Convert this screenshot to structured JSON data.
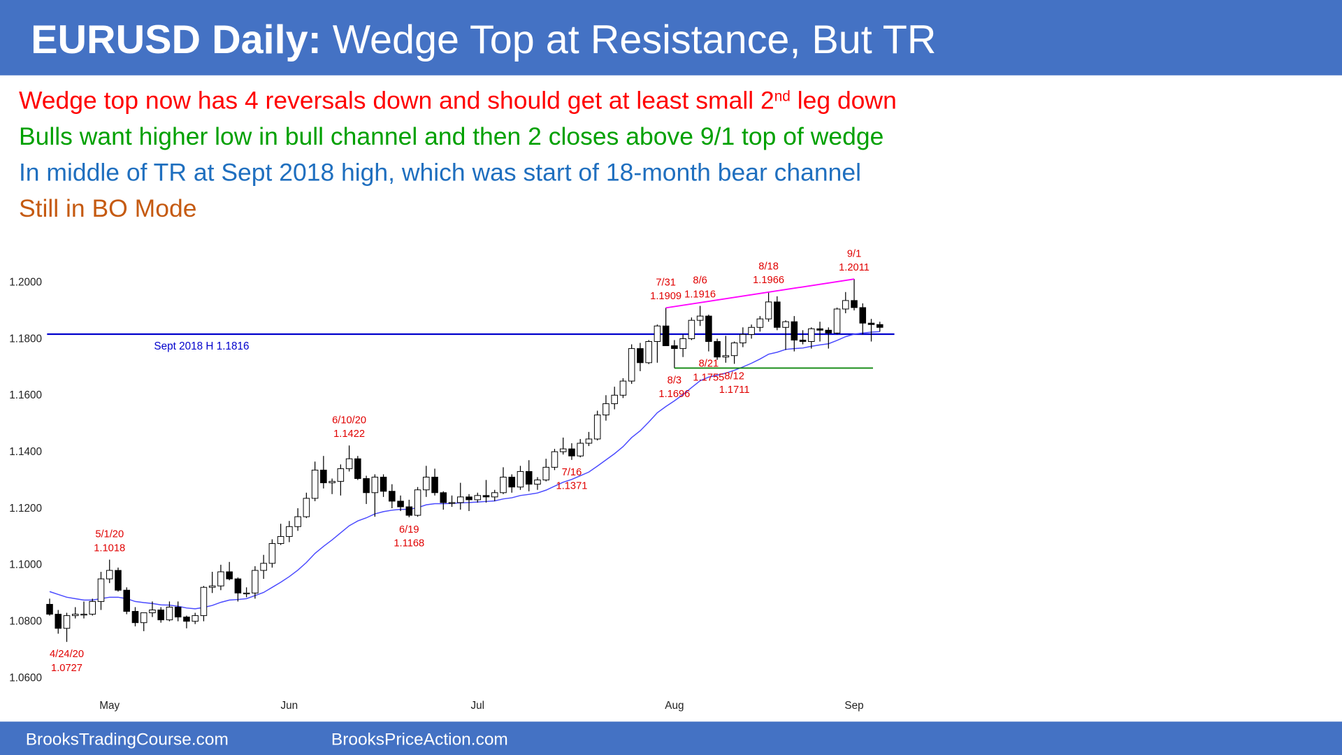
{
  "header": {
    "title_bold": "EURUSD Daily:",
    "title_rest": " Wedge Top at Resistance, But TR"
  },
  "notes": [
    {
      "text": "Wedge top now has 4 reversals down and should get at least small 2",
      "superscript": "nd",
      "text_after": " leg down",
      "color": "#ff0000"
    },
    {
      "text": "Bulls want higher low in bull channel and then 2 closes above 9/1 top of wedge",
      "color": "#00a000"
    },
    {
      "text": "In middle of TR at Sept 2018 high, which was start of 18-month bear channel",
      "color": "#1f6fbf"
    },
    {
      "text": "Still in BO Mode",
      "color": "#c55a11"
    }
  ],
  "chart_data": {
    "type": "candlestick",
    "ylim": [
      1.056,
      1.212
    ],
    "yticks": [
      {
        "value": 1.06,
        "label": "1.0600"
      },
      {
        "value": 1.08,
        "label": "1.0800"
      },
      {
        "value": 1.1,
        "label": "1.1000"
      },
      {
        "value": 1.12,
        "label": "1.1200"
      },
      {
        "value": 1.14,
        "label": "1.1400"
      },
      {
        "value": 1.16,
        "label": "1.1600"
      },
      {
        "value": 1.18,
        "label": "1.1800"
      },
      {
        "value": 1.2,
        "label": "1.2000"
      }
    ],
    "grid": false,
    "categories": [
      null,
      null,
      null,
      null,
      null,
      null,
      null,
      "May",
      null,
      null,
      null,
      null,
      null,
      null,
      null,
      null,
      null,
      null,
      null,
      null,
      null,
      null,
      null,
      null,
      null,
      null,
      null,
      null,
      "Jun",
      null,
      null,
      null,
      null,
      null,
      null,
      null,
      null,
      null,
      null,
      null,
      null,
      null,
      null,
      null,
      null,
      null,
      null,
      null,
      null,
      null,
      "Jul",
      null,
      null,
      null,
      null,
      null,
      null,
      null,
      null,
      null,
      null,
      null,
      null,
      null,
      null,
      null,
      null,
      null,
      null,
      null,
      null,
      null,
      null,
      "Aug",
      null,
      null,
      null,
      null,
      null,
      null,
      null,
      null,
      null,
      null,
      null,
      null,
      null,
      null,
      null,
      null,
      null,
      null,
      null,
      null,
      "Sep",
      null,
      null,
      null
    ],
    "ohlc": [
      [
        1.086,
        1.088,
        1.082,
        1.0825
      ],
      [
        1.0825,
        1.084,
        1.0756,
        1.0775
      ],
      [
        1.0775,
        1.083,
        1.0727,
        1.082
      ],
      [
        1.082,
        1.085,
        1.081,
        1.0825
      ],
      [
        1.0825,
        1.087,
        1.081,
        1.0825
      ],
      [
        1.0825,
        1.088,
        1.082,
        1.087
      ],
      [
        1.087,
        1.0975,
        1.084,
        1.095
      ],
      [
        1.095,
        1.1018,
        1.0935,
        1.098
      ],
      [
        1.098,
        1.099,
        1.0905,
        1.091
      ],
      [
        1.091,
        1.092,
        1.0825,
        1.0835
      ],
      [
        1.0835,
        1.085,
        1.0782,
        1.0795
      ],
      [
        1.0795,
        1.083,
        1.0765,
        1.083
      ],
      [
        1.083,
        1.087,
        1.0815,
        1.084
      ],
      [
        1.084,
        1.085,
        1.0795,
        1.0805
      ],
      [
        1.0805,
        1.087,
        1.08,
        1.085
      ],
      [
        1.085,
        1.087,
        1.08,
        1.0815
      ],
      [
        1.0815,
        1.082,
        1.0775,
        1.08
      ],
      [
        1.08,
        1.083,
        1.079,
        1.082
      ],
      [
        1.082,
        1.0925,
        1.08,
        1.092
      ],
      [
        1.092,
        1.0975,
        1.09,
        1.0925
      ],
      [
        1.0925,
        1.1,
        1.091,
        1.0975
      ],
      [
        1.0975,
        1.101,
        1.0945,
        1.095
      ],
      [
        1.095,
        1.0955,
        1.087,
        1.09
      ],
      [
        1.09,
        1.092,
        1.0885,
        1.09
      ],
      [
        1.09,
        1.0995,
        1.088,
        1.098
      ],
      [
        1.098,
        1.1035,
        1.095,
        1.1005
      ],
      [
        1.1005,
        1.109,
        1.099,
        1.1075
      ],
      [
        1.1075,
        1.1145,
        1.107,
        1.11
      ],
      [
        1.11,
        1.1155,
        1.108,
        1.1135
      ],
      [
        1.1135,
        1.12,
        1.112,
        1.117
      ],
      [
        1.117,
        1.1255,
        1.1165,
        1.1235
      ],
      [
        1.1235,
        1.1365,
        1.1225,
        1.1335
      ],
      [
        1.1335,
        1.1385,
        1.127,
        1.129
      ],
      [
        1.129,
        1.1305,
        1.125,
        1.1295
      ],
      [
        1.1295,
        1.1355,
        1.1245,
        1.134
      ],
      [
        1.134,
        1.1422,
        1.133,
        1.1375
      ],
      [
        1.1375,
        1.1385,
        1.13,
        1.1305
      ],
      [
        1.1305,
        1.1315,
        1.1215,
        1.1255
      ],
      [
        1.1255,
        1.132,
        1.117,
        1.131
      ],
      [
        1.131,
        1.132,
        1.124,
        1.126
      ],
      [
        1.126,
        1.1285,
        1.12,
        1.1225
      ],
      [
        1.1225,
        1.1245,
        1.119,
        1.1205
      ],
      [
        1.1205,
        1.123,
        1.1168,
        1.1175
      ],
      [
        1.1175,
        1.1275,
        1.117,
        1.1265
      ],
      [
        1.1265,
        1.135,
        1.124,
        1.131
      ],
      [
        1.131,
        1.134,
        1.1245,
        1.1255
      ],
      [
        1.1255,
        1.126,
        1.1195,
        1.122
      ],
      [
        1.122,
        1.1245,
        1.1205,
        1.122
      ],
      [
        1.122,
        1.129,
        1.1195,
        1.124
      ],
      [
        1.124,
        1.125,
        1.119,
        1.123
      ],
      [
        1.123,
        1.1255,
        1.122,
        1.1245
      ],
      [
        1.1245,
        1.13,
        1.122,
        1.124
      ],
      [
        1.124,
        1.1265,
        1.1225,
        1.1255
      ],
      [
        1.1255,
        1.1345,
        1.125,
        1.131
      ],
      [
        1.131,
        1.132,
        1.1255,
        1.1275
      ],
      [
        1.1275,
        1.135,
        1.1265,
        1.133
      ],
      [
        1.133,
        1.137,
        1.126,
        1.1285
      ],
      [
        1.1285,
        1.131,
        1.1265,
        1.13
      ],
      [
        1.13,
        1.1375,
        1.1295,
        1.1345
      ],
      [
        1.1345,
        1.141,
        1.1335,
        1.14
      ],
      [
        1.14,
        1.145,
        1.139,
        1.141
      ],
      [
        1.141,
        1.143,
        1.1371,
        1.1385
      ],
      [
        1.1385,
        1.1445,
        1.138,
        1.143
      ],
      [
        1.143,
        1.147,
        1.142,
        1.1445
      ],
      [
        1.1445,
        1.1545,
        1.144,
        1.153
      ],
      [
        1.153,
        1.16,
        1.151,
        1.157
      ],
      [
        1.157,
        1.163,
        1.155,
        1.16
      ],
      [
        1.16,
        1.166,
        1.159,
        1.165
      ],
      [
        1.165,
        1.178,
        1.164,
        1.1765
      ],
      [
        1.1765,
        1.1785,
        1.1685,
        1.1715
      ],
      [
        1.1715,
        1.1795,
        1.171,
        1.179
      ],
      [
        1.179,
        1.185,
        1.1715,
        1.1845
      ],
      [
        1.1845,
        1.1909,
        1.178,
        1.1775
      ],
      [
        1.1775,
        1.1795,
        1.1696,
        1.1765
      ],
      [
        1.1765,
        1.1815,
        1.1735,
        1.18
      ],
      [
        1.18,
        1.1875,
        1.1795,
        1.1865
      ],
      [
        1.1865,
        1.1916,
        1.1845,
        1.188
      ],
      [
        1.188,
        1.1885,
        1.1755,
        1.179
      ],
      [
        1.179,
        1.18,
        1.1725,
        1.1735
      ],
      [
        1.1735,
        1.181,
        1.1715,
        1.174
      ],
      [
        1.174,
        1.179,
        1.1711,
        1.1785
      ],
      [
        1.1785,
        1.184,
        1.177,
        1.1815
      ],
      [
        1.1815,
        1.185,
        1.18,
        1.184
      ],
      [
        1.184,
        1.188,
        1.1825,
        1.187
      ],
      [
        1.187,
        1.1966,
        1.186,
        1.193
      ],
      [
        1.193,
        1.195,
        1.183,
        1.184
      ],
      [
        1.184,
        1.1865,
        1.176,
        1.186
      ],
      [
        1.186,
        1.188,
        1.1755,
        1.1795
      ],
      [
        1.1795,
        1.183,
        1.178,
        1.179
      ],
      [
        1.179,
        1.184,
        1.1765,
        1.1835
      ],
      [
        1.1835,
        1.186,
        1.179,
        1.183
      ],
      [
        1.183,
        1.184,
        1.1765,
        1.182
      ],
      [
        1.182,
        1.191,
        1.1815,
        1.1905
      ],
      [
        1.1905,
        1.1965,
        1.189,
        1.1935
      ],
      [
        1.1935,
        1.2011,
        1.19,
        1.191
      ],
      [
        1.191,
        1.1925,
        1.1815,
        1.1855
      ],
      [
        1.1855,
        1.187,
        1.179,
        1.185
      ],
      [
        1.185,
        1.186,
        1.1825,
        1.184
      ]
    ],
    "up_color": "#ffffff",
    "down_color": "#000000",
    "series": [
      {
        "type": "line",
        "color": "#4a4aff",
        "values": [
          1.0905,
          1.0895,
          1.0885,
          1.088,
          1.0875,
          1.0875,
          1.088,
          1.0885,
          1.0885,
          1.088,
          1.087,
          1.0866,
          1.0863,
          1.0858,
          1.0857,
          1.0853,
          1.0847,
          1.0844,
          1.0849,
          1.0856,
          1.0867,
          1.0875,
          1.0877,
          1.088,
          1.0891,
          1.0902,
          1.092,
          1.0938,
          1.0958,
          1.0981,
          1.1008,
          1.104,
          1.1065,
          1.1088,
          1.1113,
          1.1138,
          1.1155,
          1.1166,
          1.118,
          1.1188,
          1.1193,
          1.1196,
          1.1196,
          1.1202,
          1.1212,
          1.1216,
          1.1216,
          1.1217,
          1.1219,
          1.122,
          1.1222,
          1.1224,
          1.1226,
          1.1233,
          1.1237,
          1.1245,
          1.1249,
          1.1254,
          1.1264,
          1.1278,
          1.1292,
          1.1302,
          1.1315,
          1.1328,
          1.1349,
          1.1371,
          1.1393,
          1.1418,
          1.145,
          1.1474,
          1.1505,
          1.1538,
          1.156,
          1.158,
          1.1602,
          1.1627,
          1.1651,
          1.1664,
          1.1671,
          1.1678,
          1.1688,
          1.17,
          1.1713,
          1.1728,
          1.1745,
          1.1752,
          1.1762,
          1.1765,
          1.1767,
          1.1773,
          1.1778,
          1.1782,
          1.1794,
          1.1807,
          1.1816,
          1.182,
          1.1823,
          1.1825
        ]
      }
    ],
    "hlines": [
      {
        "value": 1.1816,
        "label": "Sept 2018 H 1.1816",
        "color": "#0000cc"
      }
    ],
    "support_lines": [
      {
        "value": 1.1696,
        "color": "#008000"
      }
    ],
    "trendlines": [
      {
        "from": 1.1909,
        "to": 1.2011,
        "color": "#ff00ff"
      }
    ],
    "annotations": [
      {
        "label": "4/24/20",
        "value": 1.0727,
        "placement": "below"
      },
      {
        "label": "5/1/20",
        "value": 1.1018,
        "placement": "above"
      },
      {
        "label": "6/10/20",
        "value": 1.1422,
        "placement": "above"
      },
      {
        "label": "6/19",
        "value": 1.1168,
        "placement": "below"
      },
      {
        "label": "7/16",
        "value": 1.1371,
        "placement": "below"
      },
      {
        "label": "7/31",
        "value": 1.1909,
        "placement": "above"
      },
      {
        "label": "8/3",
        "value": 1.1696,
        "placement": "below"
      },
      {
        "label": "8/6",
        "value": 1.1916,
        "placement": "above"
      },
      {
        "label": "8/12",
        "value": 1.1711,
        "placement": "below"
      },
      {
        "label": "8/18",
        "value": 1.1966,
        "placement": "above"
      },
      {
        "label": "8/21",
        "value": 1.1755,
        "placement": "below"
      },
      {
        "label": "9/1",
        "value": 1.2011,
        "placement": "above"
      }
    ]
  },
  "footer": [
    "BrooksTradingCourse.com",
    "BrooksPriceAction.com"
  ]
}
